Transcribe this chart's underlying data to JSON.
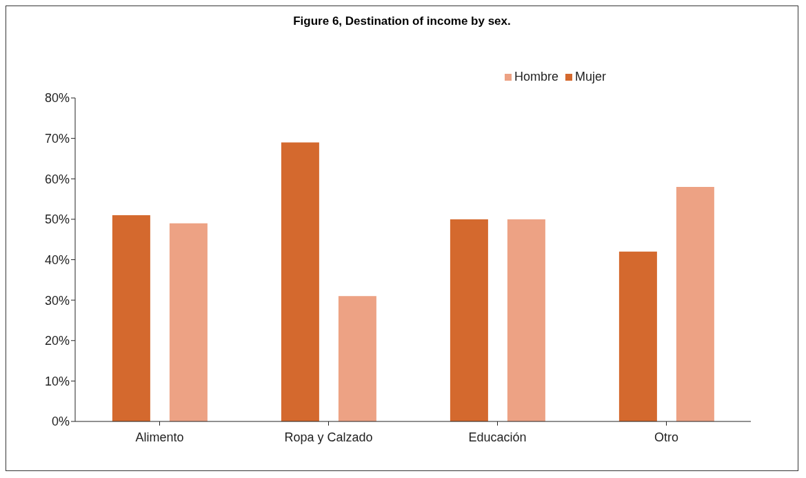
{
  "chart_data": {
    "type": "bar",
    "title": "Figure 6, Destination of income by sex.",
    "categories": [
      "Alimento",
      "Ropa y Calzado",
      "Educación",
      "Otro"
    ],
    "series": [
      {
        "name": "Mujer",
        "color": "#d4692e",
        "values": [
          51,
          69,
          50,
          42
        ]
      },
      {
        "name": "Hombre",
        "color": "#eda284",
        "values": [
          49,
          31,
          50,
          58
        ]
      }
    ],
    "ylim": [
      0,
      80
    ],
    "yticks": [
      {
        "value": 0,
        "label": "0%"
      },
      {
        "value": 10,
        "label": "10%"
      },
      {
        "value": 20,
        "label": "20%"
      },
      {
        "value": 30,
        "label": "30%"
      },
      {
        "value": 40,
        "label": "40%"
      },
      {
        "value": 50,
        "label": "50%"
      },
      {
        "value": 60,
        "label": "60%"
      },
      {
        "value": 70,
        "label": "70%"
      },
      {
        "value": 80,
        "label": "80%"
      }
    ],
    "grid": false,
    "legend": "top right"
  }
}
